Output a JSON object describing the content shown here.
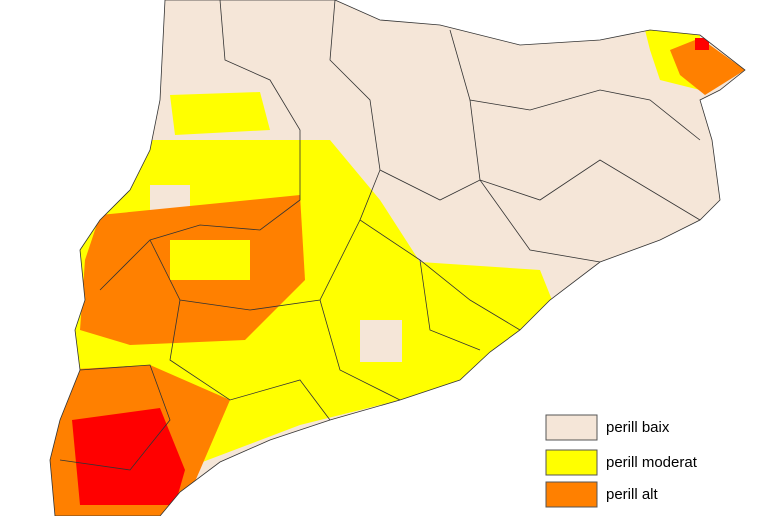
{
  "legend": {
    "items": [
      {
        "label": "perill baix",
        "color": "#f5e6d8"
      },
      {
        "label": "perill moderat",
        "color": "#ffff00"
      },
      {
        "label": "perill alt",
        "color": "#ff8000"
      }
    ]
  }
}
